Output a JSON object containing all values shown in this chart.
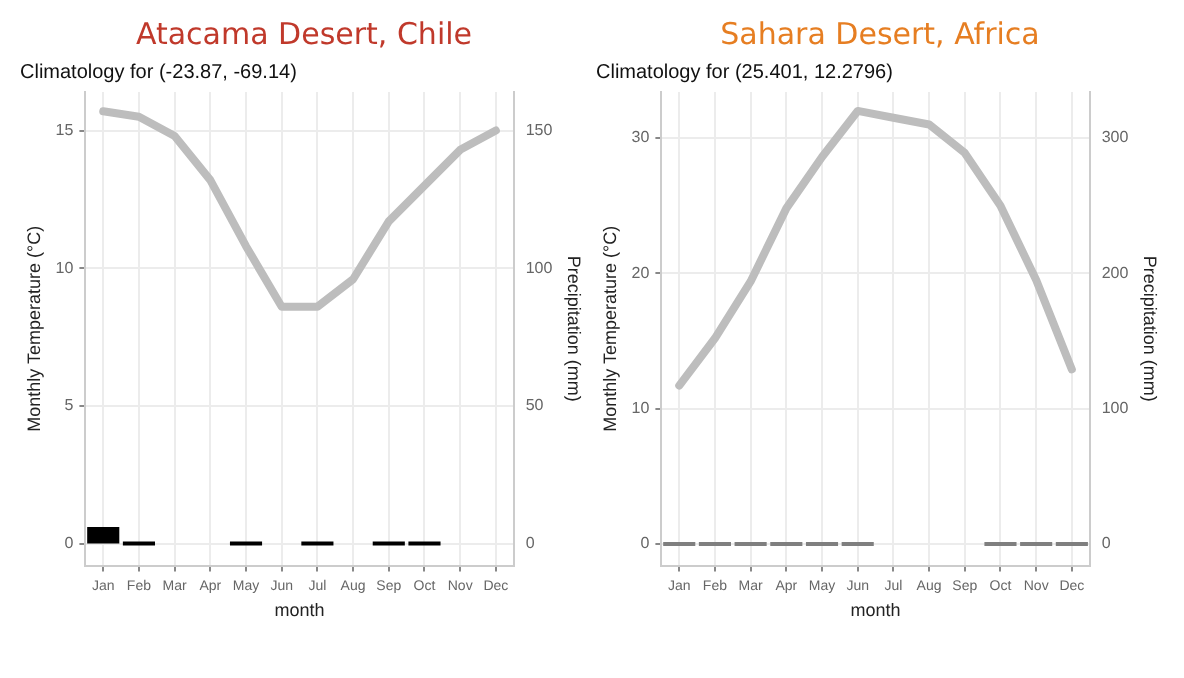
{
  "chart_data": [
    {
      "type": "bar",
      "title": "Atacama Desert, Chile",
      "subtitle": "Climatology for (-23.87, -69.14)",
      "xlabel": "month",
      "ylabel": "Monthly Temperature (°C)",
      "y2label": "Precipitation (mm)",
      "categories": [
        "Jan",
        "Feb",
        "Mar",
        "Apr",
        "May",
        "Jun",
        "Jul",
        "Aug",
        "Sep",
        "Oct",
        "Nov",
        "Dec"
      ],
      "series": [
        {
          "axis": "y2",
          "color": "#000000",
          "values": [
            6,
            0,
            null,
            null,
            0,
            null,
            0,
            null,
            0,
            0,
            null,
            null
          ]
        },
        {
          "type": "line",
          "axis": "y",
          "color": "#bdbdbd",
          "values": [
            15.7,
            15.5,
            14.8,
            13.2,
            10.8,
            8.6,
            8.6,
            9.6,
            11.7,
            13.0,
            14.3,
            15.0
          ]
        }
      ],
      "ylim": [
        -0.8,
        16.4
      ],
      "yticks": [
        0,
        5,
        10,
        15
      ],
      "y2lim": [
        -8,
        164
      ],
      "y2ticks": [
        0,
        50,
        100,
        150
      ],
      "grid": true,
      "legend": false
    },
    {
      "type": "bar",
      "title": "Sahara Desert, Africa",
      "subtitle": "Climatology for (25.401, 12.2796)",
      "xlabel": "month",
      "ylabel": "Monthly Temperature (°C)",
      "y2label": "Precipitation (mm)",
      "categories": [
        "Jan",
        "Feb",
        "Mar",
        "Apr",
        "May",
        "Jun",
        "Jul",
        "Aug",
        "Sep",
        "Oct",
        "Nov",
        "Dec"
      ],
      "series": [
        {
          "axis": "y2",
          "color": "#7f7f7f",
          "values": [
            0,
            0,
            0,
            0,
            0,
            0,
            null,
            null,
            null,
            0,
            0,
            0
          ]
        },
        {
          "type": "line",
          "axis": "y",
          "color": "#bdbdbd",
          "values": [
            11.7,
            15.2,
            19.4,
            24.8,
            28.6,
            32.0,
            31.5,
            31.0,
            28.9,
            25.0,
            19.5,
            12.9
          ]
        }
      ],
      "ylim": [
        -1.6,
        33.4
      ],
      "yticks": [
        0,
        10,
        20,
        30
      ],
      "y2lim": [
        -16,
        334
      ],
      "y2ticks": [
        0,
        100,
        200,
        300
      ],
      "grid": true,
      "legend": false
    }
  ]
}
